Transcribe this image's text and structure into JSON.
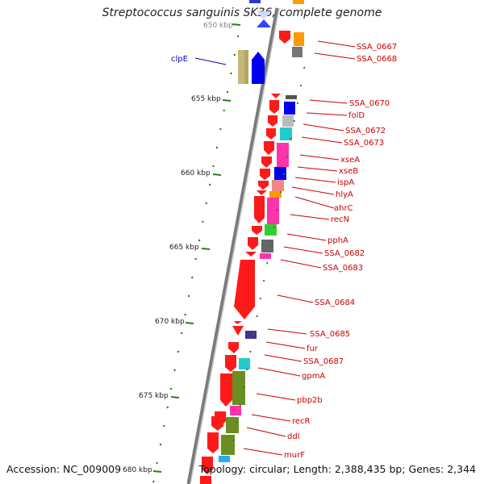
{
  "title": "Streptococcus sanguinis SK36, complete genome",
  "accession": "Accession: NC_009009",
  "topology": "Topology: circular; Length: 2,388,435 bp; Genes: 2,344",
  "ruler_labels": [
    "650 kbp",
    "655 kbp",
    "660 kbp",
    "665 kbp",
    "670 kbp",
    "675 kbp",
    "680 kbp"
  ],
  "colors": {
    "backbone": "#888888",
    "gene_label": "#cc0000",
    "reverse_label": "#0000cc",
    "cds_arrow": "#ff0000",
    "tick": "#2e7d1a"
  },
  "forward_genes": [
    "SSA_0667",
    "SSA_0668",
    "SSA_0670",
    "folD",
    "SSA_0672",
    "SSA_0673",
    "xseA",
    "xseB",
    "ispA",
    "hlyA",
    "ahrC",
    "recN",
    "pphA",
    "SSA_0682",
    "SSA_0683",
    "SSA_0684",
    "SSA_0685",
    "fur",
    "SSA_0687",
    "gpmA",
    "pbp2b",
    "recR",
    "ddl",
    "murF"
  ],
  "reverse_genes": [
    "clpE"
  ]
}
